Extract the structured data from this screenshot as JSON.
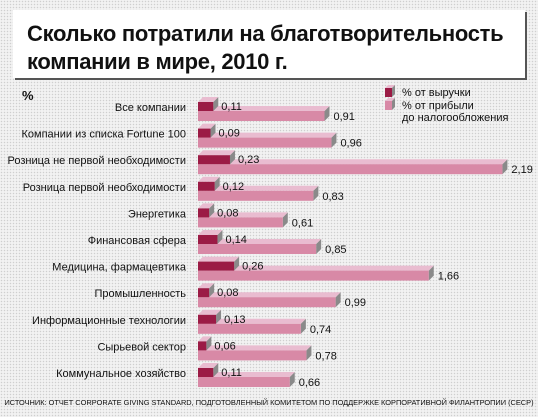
{
  "title": "Сколько потратили на благотворительность компании в мире, 2010 г.",
  "unit": "%",
  "source": "ИСТОЧНИК: ОТЧЕТ CORPORATE GIVING STANDARD, ПОДГОТОВЛЕННЫЙ КОМИТЕТОМ ПО ПОДДЕРЖКЕ КОРПОРАТИВНОЙ ФИЛАНТРОПИИ (CECP)",
  "colors": {
    "revenue": "#9b1b45",
    "profit": "#d889a6",
    "bar_top": "#e9bcd0",
    "bar_side": "#8a8a8a"
  },
  "chart_data": {
    "type": "bar",
    "orientation": "horizontal",
    "legend_position": "top-right",
    "categories": [
      "Все компании",
      "Компании из списка Fortune 100",
      "Розница не первой необходимости",
      "Розница первой необходимости",
      "Энергетика",
      "Финансовая сфера",
      "Медицина, фармацевтика",
      "Промышленность",
      "Информационные технологии",
      "Сырьевой сектор",
      "Коммунальное хозяйство"
    ],
    "series": [
      {
        "name": "% от выручки",
        "values": [
          0.11,
          0.09,
          0.23,
          0.12,
          0.08,
          0.14,
          0.26,
          0.08,
          0.13,
          0.06,
          0.11
        ],
        "labels": [
          "0,11",
          "0,09",
          "0,23",
          "0,12",
          "0,08",
          "0,14",
          "0,26",
          "0,08",
          "0,13",
          "0,06",
          "0,11"
        ]
      },
      {
        "name": "% от прибыли до налогообложения",
        "values": [
          0.91,
          0.96,
          2.19,
          0.83,
          0.61,
          0.85,
          1.66,
          0.99,
          0.74,
          0.78,
          0.66
        ],
        "labels": [
          "0,91",
          "0,96",
          "2,19",
          "0,83",
          "0,61",
          "0,85",
          "1,66",
          "0,99",
          "0,74",
          "0,78",
          "0,66"
        ]
      }
    ],
    "legend": [
      {
        "lines": [
          "% от выручки"
        ]
      },
      {
        "lines": [
          "% от прибыли",
          "до налогообложения"
        ]
      }
    ]
  }
}
